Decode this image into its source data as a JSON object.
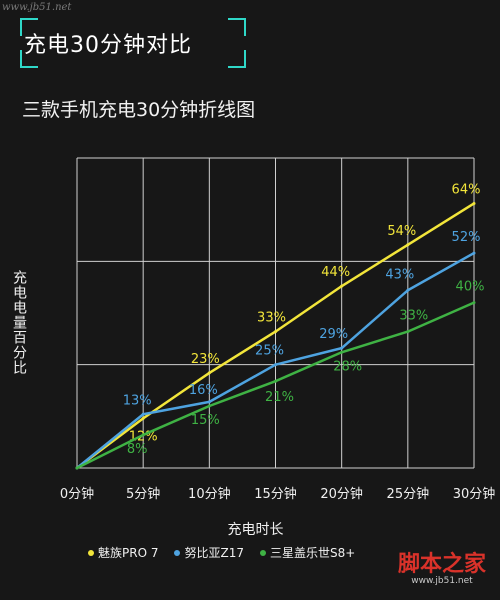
{
  "watermark_top": "www.jb51.net",
  "header": {
    "title": "充电30分钟对比"
  },
  "watermark_logo": {
    "text": "脚本之家",
    "url_text": "www.jb51.net"
  },
  "colors": {
    "background": "#171717",
    "accent": "#2fd8c8",
    "grid": "#d0d0d0"
  },
  "chart_data": {
    "type": "line",
    "title": "三款手机充电30分钟折线图",
    "xlabel": "充电时长",
    "ylabel": "充电电量百分比",
    "categories": [
      "0分钟",
      "5分钟",
      "10分钟",
      "15分钟",
      "20分钟",
      "25分钟",
      "30分钟"
    ],
    "ylim": [
      0,
      75
    ],
    "grid": true,
    "legend_position": "bottom",
    "series": [
      {
        "name": "魅族PRO 7",
        "color": "#f2e53a",
        "values": [
          0,
          12,
          23,
          33,
          44,
          54,
          64
        ],
        "labels": [
          "",
          "12%",
          "23%",
          "33%",
          "44%",
          "54%",
          "64%"
        ]
      },
      {
        "name": "努比亚Z17",
        "color": "#4ea3e0",
        "values": [
          0,
          13,
          16,
          25,
          29,
          43,
          52
        ],
        "labels": [
          "",
          "13%",
          "16%",
          "25%",
          "29%",
          "43%",
          "52%"
        ]
      },
      {
        "name": "三星盖乐世S8+",
        "color": "#3fb244",
        "values": [
          0,
          8,
          15,
          21,
          28,
          33,
          40
        ],
        "labels": [
          "",
          "8%",
          "15%",
          "21%",
          "28%",
          "33%",
          "40%"
        ]
      }
    ]
  }
}
